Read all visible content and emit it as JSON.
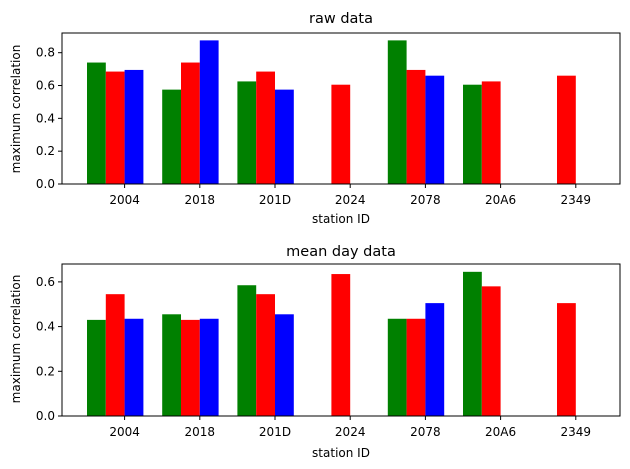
{
  "chart_data": [
    {
      "type": "bar",
      "title": "raw data",
      "xlabel": "station ID",
      "ylabel": "maximum correlation",
      "categories": [
        "2004",
        "2018",
        "201D",
        "2024",
        "2078",
        "20A6",
        "2349"
      ],
      "ylim": [
        0,
        0.92
      ],
      "yticks": [
        "0.0",
        "0.2",
        "0.4",
        "0.6",
        "0.8"
      ],
      "series": [
        {
          "color": "#008000",
          "values": [
            0.74,
            0.575,
            0.625,
            null,
            0.875,
            0.605,
            null
          ]
        },
        {
          "color": "#ff0000",
          "values": [
            0.685,
            0.74,
            0.685,
            0.605,
            0.695,
            0.625,
            0.66
          ]
        },
        {
          "color": "#0000ff",
          "values": [
            0.695,
            0.875,
            0.575,
            null,
            0.66,
            null,
            null
          ]
        }
      ]
    },
    {
      "type": "bar",
      "title": "mean day data",
      "xlabel": "station ID",
      "ylabel": "maximum correlation",
      "categories": [
        "2004",
        "2018",
        "201D",
        "2024",
        "2078",
        "20A6",
        "2349"
      ],
      "ylim": [
        0,
        0.68
      ],
      "yticks": [
        "0.0",
        "0.2",
        "0.4",
        "0.6"
      ],
      "series": [
        {
          "color": "#008000",
          "values": [
            0.43,
            0.455,
            0.585,
            null,
            0.435,
            0.645,
            null
          ]
        },
        {
          "color": "#ff0000",
          "values": [
            0.545,
            0.43,
            0.545,
            0.635,
            0.435,
            0.58,
            0.505
          ]
        },
        {
          "color": "#0000ff",
          "values": [
            0.435,
            0.435,
            0.455,
            null,
            0.505,
            null,
            null
          ]
        }
      ]
    }
  ]
}
